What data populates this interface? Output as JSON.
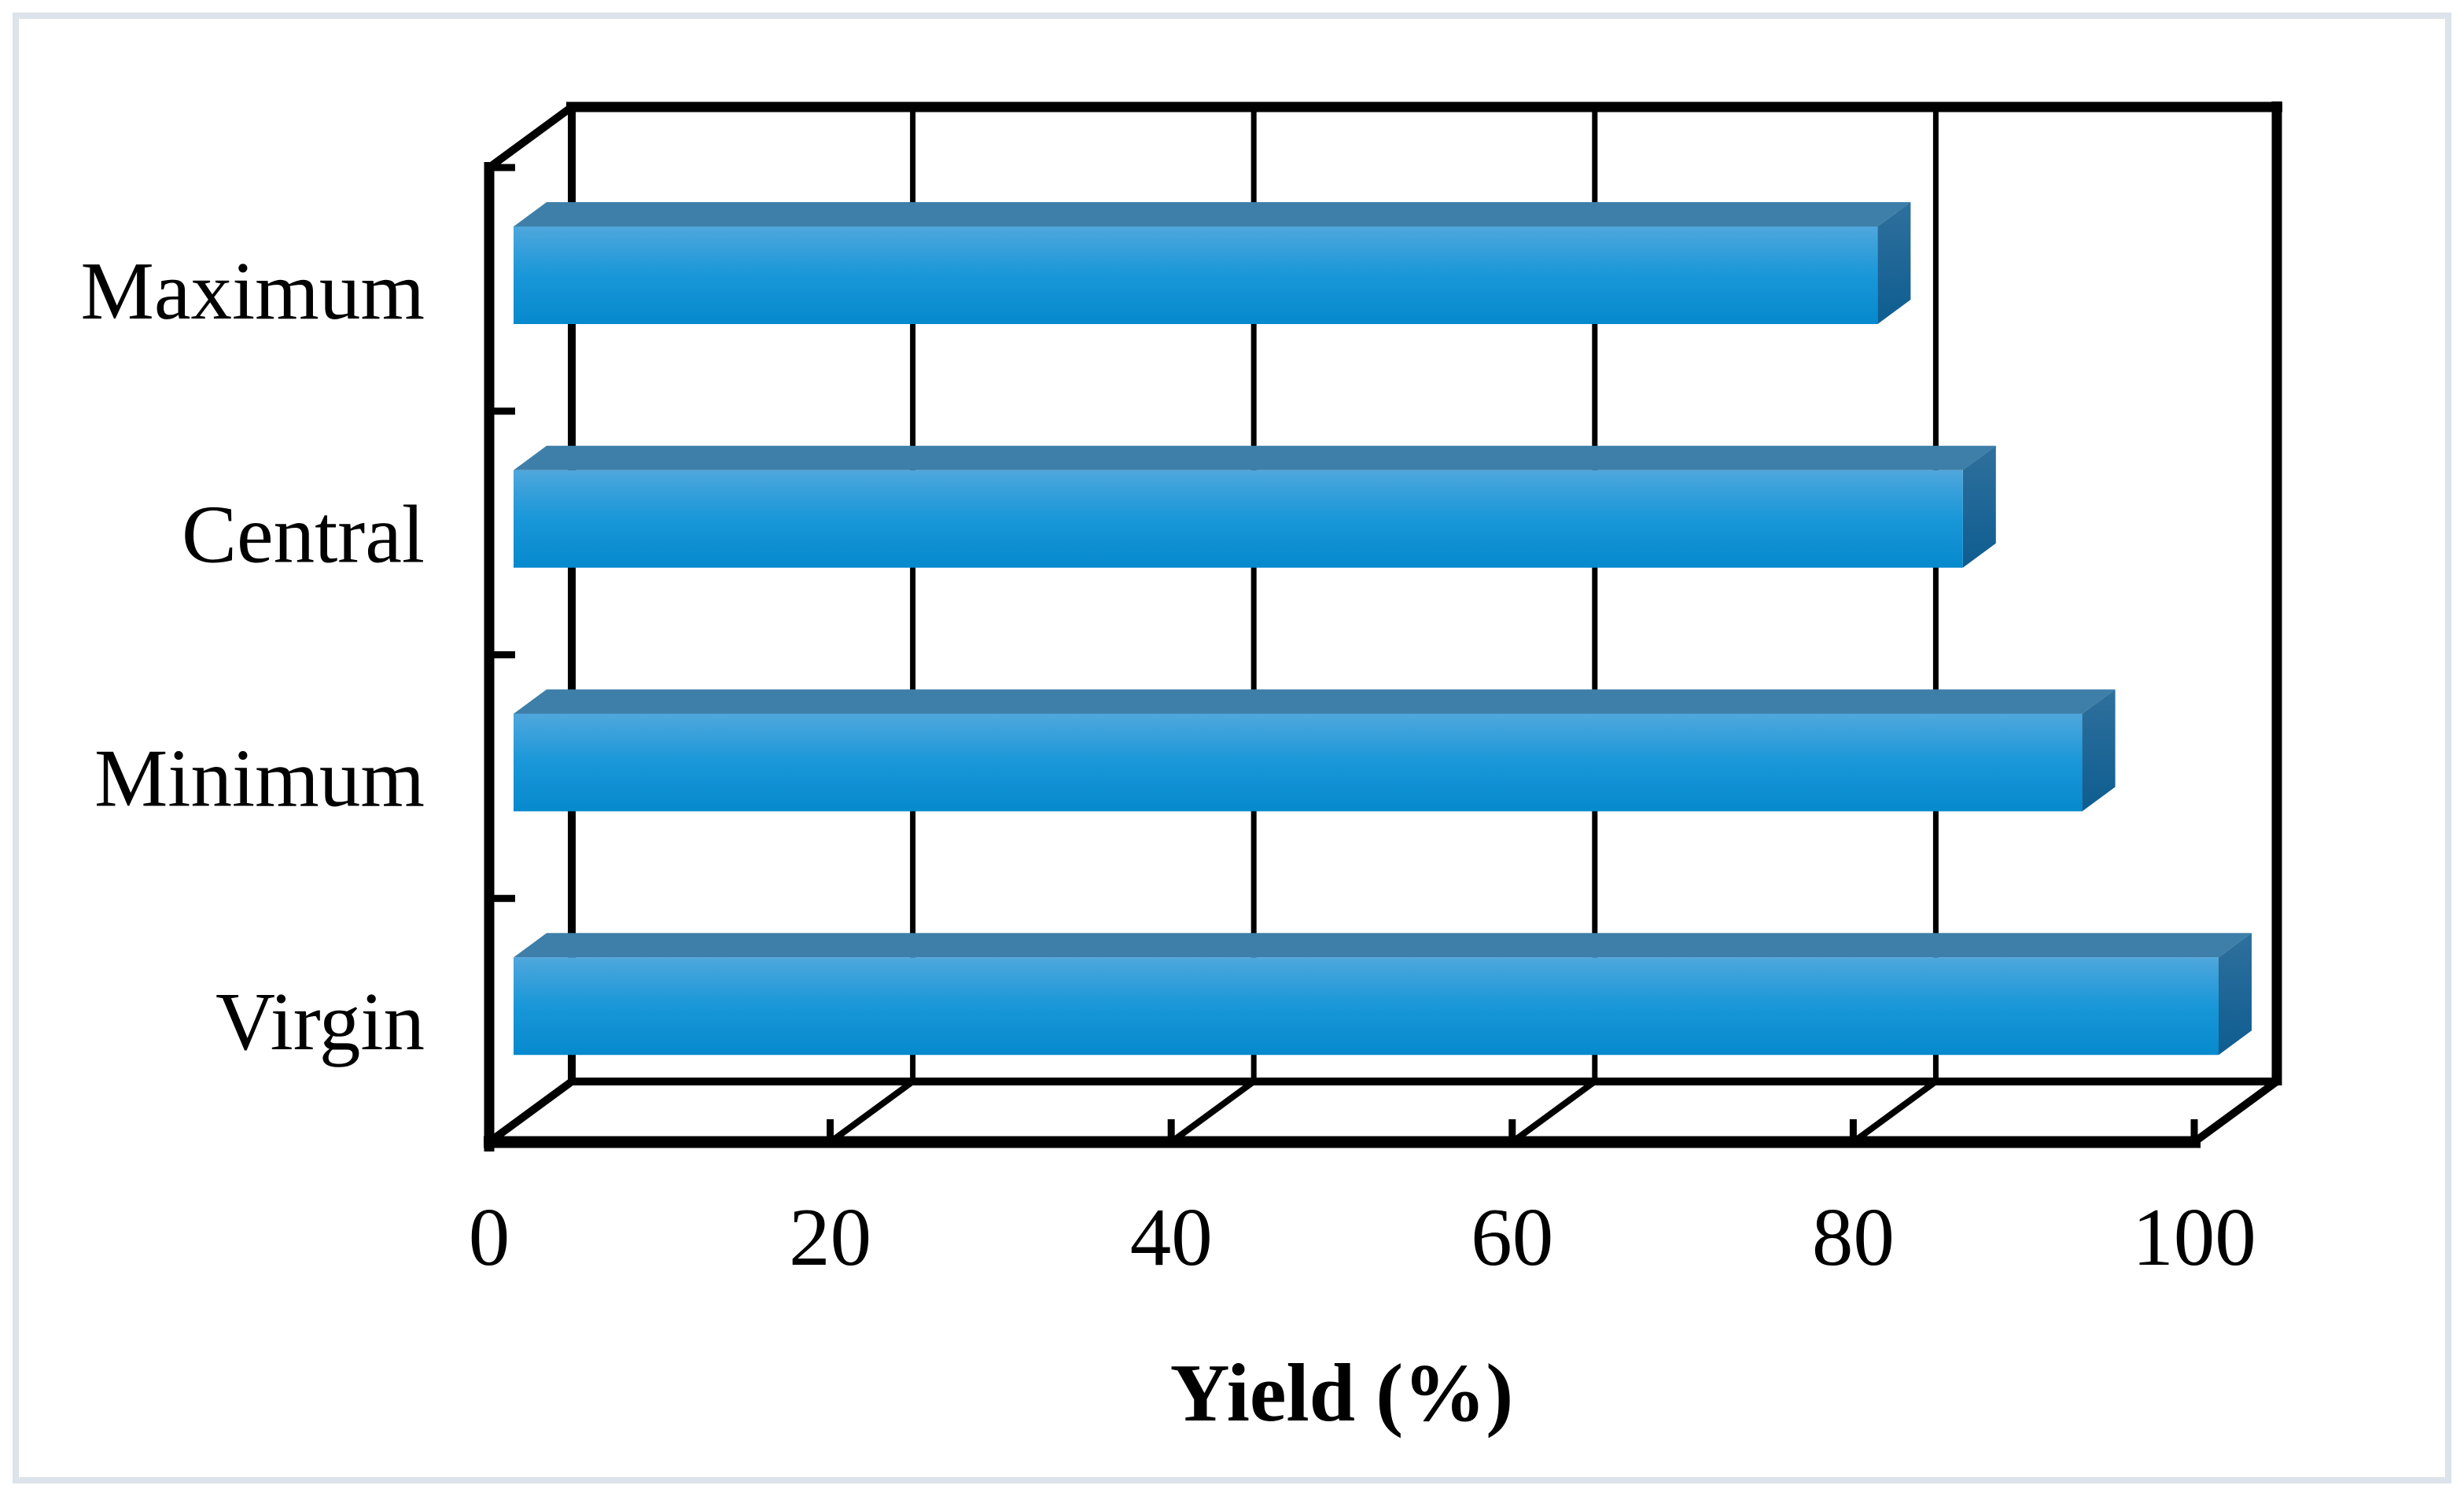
{
  "figure": {
    "background": "#ffffff",
    "border_color": "#dde3ea"
  },
  "chart_data": {
    "type": "bar",
    "orientation": "horizontal",
    "style": "3d",
    "title": "",
    "categories": [
      "Maximum",
      "Central",
      "Minimum",
      "Virgin"
    ],
    "values": [
      80,
      85,
      92,
      100
    ],
    "xlabel": "Yield (%)",
    "ylabel": "",
    "xticks": [
      0,
      20,
      40,
      60,
      80,
      100
    ],
    "xlim": [
      0,
      100
    ],
    "grid": true,
    "legend": "none",
    "axis_color": "#000000",
    "bar_colors": {
      "front_top": "#4fa7dc",
      "front_mid": "#1997d8",
      "front_bottom": "#0689cd",
      "top_face": "#3e7fa9",
      "side_top": "#2f709d",
      "side_bottom": "#0e5d90"
    }
  }
}
